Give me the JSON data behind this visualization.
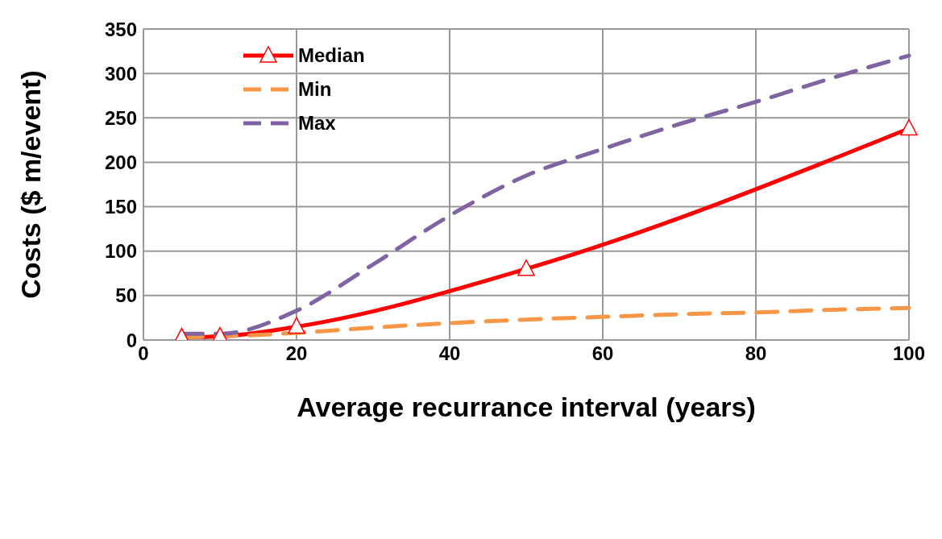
{
  "chart_data": {
    "type": "line",
    "xlabel": "Average recurrance interval (years)",
    "ylabel": "Costs ($ m/event)",
    "xlim": [
      0,
      100
    ],
    "xticks": [
      0,
      20,
      40,
      60,
      80,
      100
    ],
    "ylim": [
      0,
      350
    ],
    "yticks": [
      0,
      50,
      100,
      150,
      200,
      250,
      300,
      350
    ],
    "grid": true,
    "legend": "top left",
    "series": [
      {
        "name": "Median",
        "color": "#ff0000",
        "marker": "triangle",
        "line_style": "solid",
        "x": [
          5,
          10,
          20,
          50,
          100
        ],
        "values": [
          3,
          4,
          15,
          80,
          238
        ]
      },
      {
        "name": "Min",
        "color": "#f79646",
        "marker": "none",
        "line_style": "dashed",
        "x": [
          5,
          10,
          20,
          30,
          40,
          50,
          60,
          70,
          80,
          90,
          100
        ],
        "values": [
          3,
          4,
          8,
          14,
          19,
          23,
          26,
          29,
          31,
          34,
          36
        ]
      },
      {
        "name": "Max",
        "color": "#8064a2",
        "marker": "none",
        "line_style": "dashed",
        "x": [
          5,
          10,
          20,
          30,
          40,
          50,
          60,
          70,
          80,
          90,
          100
        ],
        "values": [
          7,
          7,
          33,
          85,
          140,
          185,
          215,
          243,
          268,
          295,
          320
        ]
      }
    ]
  }
}
